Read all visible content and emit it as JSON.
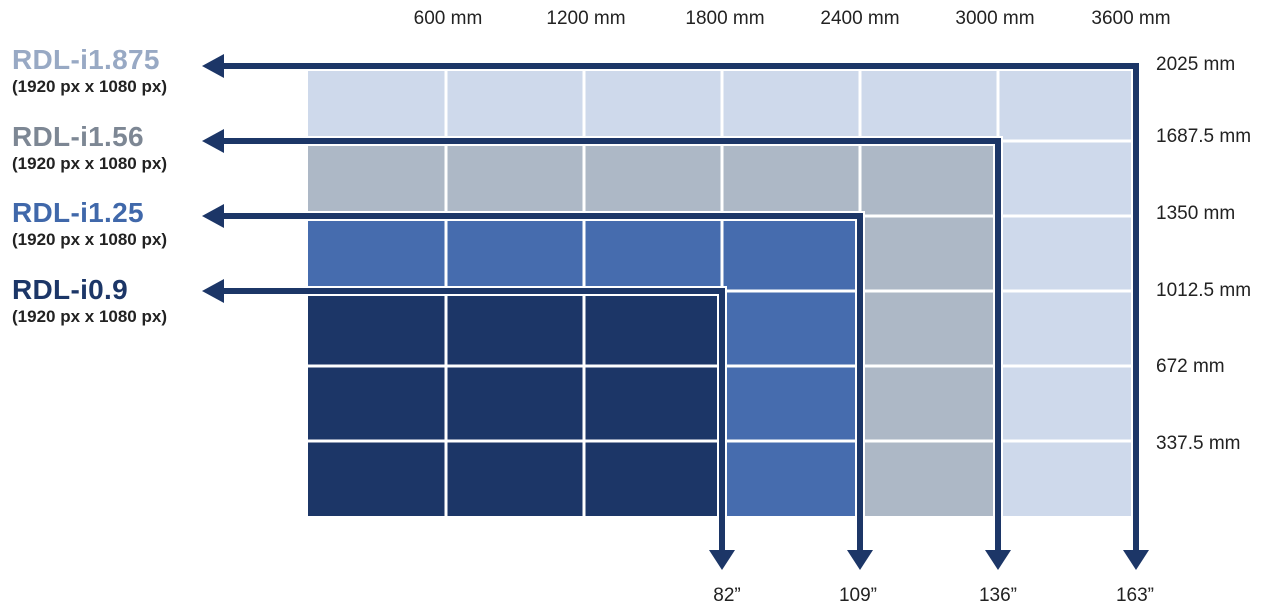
{
  "column_labels": [
    "600 mm",
    "1200 mm",
    "1800 mm",
    "2400 mm",
    "3000 mm",
    "3600 mm"
  ],
  "row_labels": [
    "2025 mm",
    "1687.5 mm",
    "1350 mm",
    "1012.5 mm",
    "672 mm",
    "337.5 mm"
  ],
  "models": [
    {
      "name": "RDL-i1.875",
      "resolution": "(1920 px x 1080 px)",
      "diagonal": "163”",
      "color": "#ced9eb",
      "label_color": "#98a9c4",
      "columns": 6,
      "rows": 6
    },
    {
      "name": "RDL-i1.56",
      "resolution": "(1920 px x 1080 px)",
      "diagonal": "136”",
      "color": "#adb8c6",
      "label_color": "#7d8794",
      "columns": 5,
      "rows": 5
    },
    {
      "name": "RDL-i1.25",
      "resolution": "(1920 px x 1080 px)",
      "diagonal": "109”",
      "color": "#466cae",
      "label_color": "#4068aa",
      "columns": 4,
      "rows": 4
    },
    {
      "name": "RDL-i0.9",
      "resolution": "(1920 px x 1080 px)",
      "diagonal": "82”",
      "color": "#1c3667",
      "label_color": "#1c3667",
      "columns": 3,
      "rows": 3
    }
  ],
  "arrow_color": "#1c3667"
}
